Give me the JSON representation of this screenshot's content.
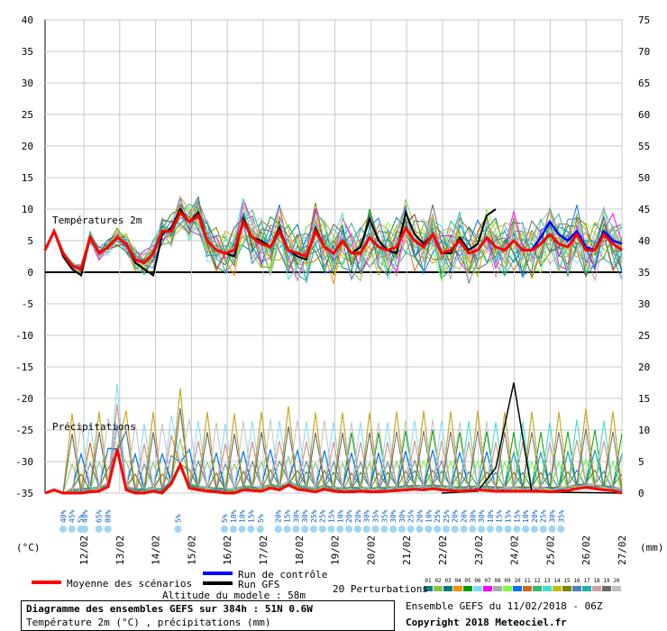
{
  "chart_data": {
    "type": "line",
    "title": "Diagramme des ensembles GEFS sur 384h : 51N 0.6W",
    "subtitle": "Température 2m (°C) , précipitations (mm)",
    "x_ticks": [
      "12/02",
      "13/02",
      "14/02",
      "15/02",
      "16/02",
      "17/02",
      "18/02",
      "19/02",
      "20/02",
      "21/02",
      "22/02",
      "23/02",
      "24/02",
      "25/02",
      "26/02",
      "27/02"
    ],
    "y_left": {
      "unit": "(°C)",
      "ticks": [
        40,
        35,
        30,
        25,
        20,
        15,
        10,
        5,
        0,
        -5,
        -10,
        -15,
        -20,
        -25,
        -30,
        -35
      ],
      "range": [
        -35,
        40
      ]
    },
    "y_right": {
      "unit": "(mm)",
      "ticks": [
        75,
        70,
        65,
        60,
        55,
        50,
        45,
        40,
        35,
        30,
        25,
        20,
        15,
        10,
        5,
        0
      ],
      "range": [
        0,
        75
      ]
    },
    "section_labels": {
      "temp": "Températures 2m",
      "precip": "Précipitations"
    },
    "temperature": {
      "mean": [
        3.5,
        6.5,
        3,
        1,
        0.5,
        5.5,
        3,
        4,
        5.5,
        4.5,
        2,
        1.5,
        3,
        6.5,
        6.5,
        9.5,
        8,
        9,
        5,
        3.5,
        3,
        3.5,
        8,
        5.5,
        4.5,
        4,
        6.5,
        3.5,
        3,
        2.5,
        6.5,
        4,
        3,
        5,
        3,
        3,
        5.5,
        4,
        3.5,
        4,
        7,
        5,
        4,
        6,
        3,
        3.5,
        5,
        3,
        3.5,
        5.5,
        4,
        3.5,
        5,
        3.5,
        3.5,
        4.5,
        6,
        4.5,
        4,
        6,
        3.5,
        3.5,
        6,
        4.5,
        3.5
      ],
      "control": [
        3.5,
        6.5,
        3,
        1,
        0.5,
        5.5,
        3,
        4,
        5.5,
        4.5,
        2,
        1.5,
        3,
        6.5,
        6.5,
        9.5,
        8,
        9,
        5,
        3.5,
        3,
        3.5,
        8,
        5.5,
        4.5,
        4,
        6.5,
        3.5,
        3,
        2.5,
        6.5,
        4,
        3,
        5,
        3,
        3,
        5.5,
        4,
        3.5,
        4,
        7,
        5,
        4,
        6,
        3,
        3.5,
        5,
        3,
        3.5,
        5.5,
        4,
        3.5,
        5,
        3.5,
        3.5,
        5.5,
        8,
        6,
        5,
        6.5,
        4,
        3.5,
        6.5,
        5,
        4.5
      ],
      "gfs": [
        3.5,
        6.5,
        2.5,
        0.5,
        -0.5,
        5.5,
        3,
        4,
        5.5,
        4.5,
        1.5,
        0.5,
        -0.5,
        6,
        7,
        10,
        8,
        9.5,
        5,
        3.5,
        3,
        2.5,
        8.5,
        5.5,
        5,
        4,
        7,
        3.5,
        2.5,
        2,
        7,
        4,
        3,
        5,
        3,
        4,
        8.5,
        5,
        3.5,
        3,
        9.5,
        6,
        4.5,
        6,
        3,
        3,
        5.5,
        3.5,
        4.5,
        9,
        10,
        null,
        null,
        null,
        null,
        null,
        null,
        null,
        null,
        null,
        null,
        null,
        null,
        null,
        null
      ]
    },
    "precipitation": {
      "mean": [
        0,
        0.5,
        0,
        0,
        0,
        0.2,
        0.3,
        1,
        7,
        0.5,
        0,
        0,
        0.3,
        0,
        1.5,
        4.5,
        0.8,
        0.5,
        0.3,
        0.2,
        0,
        0,
        0.5,
        0.4,
        0.3,
        0.8,
        0.5,
        1.3,
        0.6,
        0.4,
        0.2,
        0.6,
        0.3,
        0.2,
        0.2,
        0.3,
        0.2,
        0.2,
        0.3,
        0.4,
        0.5,
        0.6,
        0.5,
        0.7,
        0.5,
        0.4,
        0.3,
        0.4,
        0.5,
        0.4,
        0.3,
        0.3,
        0.3,
        0.3,
        0.3,
        0.3,
        0.2,
        0.3,
        0.4,
        0.7,
        0.9,
        0.7,
        0.5,
        0.4,
        0
      ],
      "gfs_peak": 17.5,
      "gfs_peak_date": "24/02"
    },
    "legend": {
      "mean": "Moyenne des scénarios",
      "control": "Run de contrôle",
      "gfs": "Run GFS",
      "perturbations": "20 Perturbations",
      "member_ids": [
        "01",
        "02",
        "03",
        "04",
        "05",
        "06",
        "07",
        "08",
        "09",
        "10",
        "11",
        "12",
        "13",
        "14",
        "15",
        "16",
        "17",
        "18",
        "19",
        "20"
      ],
      "member_colors": [
        "#1c7f7f",
        "#8bc34a",
        "#007a7a",
        "#ff8c00",
        "#00a000",
        "#7fd9ff",
        "#ff00ff",
        "#aaaaaa",
        "#80ff40",
        "#0070ff",
        "#d2691e",
        "#3cb371",
        "#40e0d0",
        "#c0c000",
        "#808000",
        "#4682b4",
        "#20b2aa",
        "#d0a0a0",
        "#696969",
        "#c0c0c0"
      ],
      "colors": {
        "mean": "#ff0000",
        "control": "#0000ff",
        "gfs": "#000000"
      }
    },
    "snow_pct": [
      {
        "date_index": 0.3,
        "labels": [
          "40%",
          "45%",
          "5%"
        ]
      },
      {
        "date_index": 0.9,
        "labels": [
          "40%"
        ]
      },
      {
        "date_index": 1.3,
        "labels": [
          "65%",
          "80%"
        ]
      },
      {
        "date_index": 3.5,
        "labels": [
          "5%"
        ]
      },
      {
        "date_index": 4.8,
        "labels": [
          "5%",
          "10%",
          "10%",
          "15%"
        ]
      },
      {
        "date_index": 5.8,
        "labels": [
          "5%"
        ]
      },
      {
        "date_index": 6.3,
        "labels": [
          "20%",
          "15%",
          "30%",
          "30%",
          "25%",
          "25%",
          "15%",
          "10%",
          "20%",
          "20%",
          "30%",
          "35%",
          "35%",
          "30%",
          "30%",
          "25%",
          "20%",
          "10%",
          "25%",
          "25%",
          "20%",
          "20%",
          "30%",
          "30%",
          "10%",
          "15%",
          "15%",
          "15%",
          "10%",
          "20%",
          "25%",
          "30%",
          "35%"
        ]
      }
    ],
    "grid": true
  },
  "footer": {
    "altitude": "Altitude du modele : 58m",
    "ensemble_run": "Ensemble GEFS du 11/02/2018 - 06Z",
    "copyright": "Copyright 2018 Meteociel.fr"
  }
}
